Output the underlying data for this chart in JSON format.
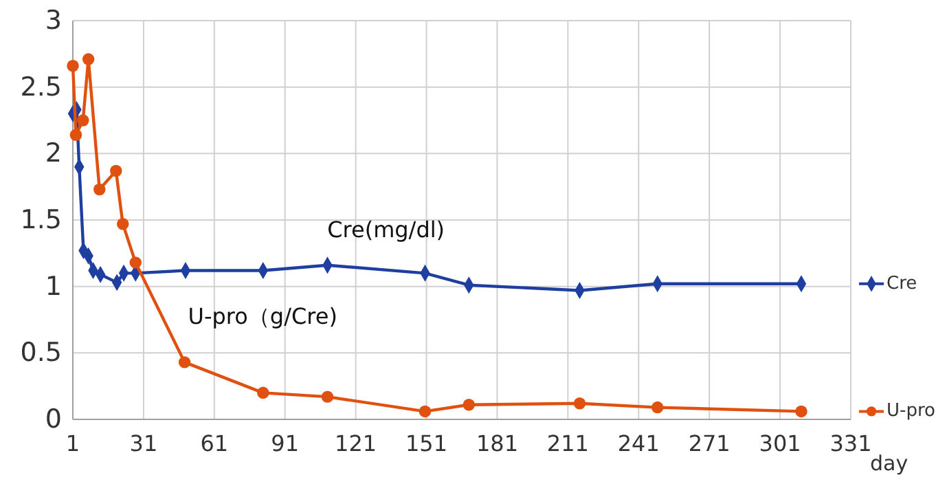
{
  "chart_data": {
    "type": "line",
    "xlabel": "day",
    "xlim": [
      1,
      331
    ],
    "xticks": [
      1,
      31,
      61,
      91,
      121,
      151,
      181,
      211,
      241,
      271,
      301,
      331
    ],
    "ylim": [
      0,
      3
    ],
    "yticks": [
      0,
      0.5,
      1,
      1.5,
      2,
      2.5,
      3
    ],
    "grid": true,
    "legend": "right",
    "line_style": "solid",
    "series": [
      {
        "name": "Cre",
        "color": "#1f3fa0",
        "marker": "diamond",
        "x": [
          1,
          2.6,
          3.7,
          5.5,
          7.6,
          9.6,
          12.7,
          19.7,
          22.6,
          27.6,
          48.8,
          81.7,
          109,
          150.4,
          169,
          216,
          249,
          310
        ],
        "values": [
          2.3,
          2.33,
          1.9,
          1.27,
          1.23,
          1.12,
          1.09,
          1.03,
          1.1,
          1.1,
          1.12,
          1.12,
          1.16,
          1.1,
          1.01,
          0.97,
          1.02,
          1.02
        ]
      },
      {
        "name": "U-pro",
        "color": "#e0500f",
        "marker": "circle",
        "x": [
          1,
          2.3,
          5.3,
          7.6,
          12.3,
          19.3,
          22.2,
          27.6,
          48.4,
          81.7,
          109,
          150.4,
          169,
          216,
          249,
          310
        ],
        "values": [
          2.66,
          2.14,
          2.25,
          2.71,
          1.73,
          1.87,
          1.47,
          1.18,
          0.43,
          0.2,
          0.17,
          0.06,
          0.11,
          0.12,
          0.09,
          0.06
        ]
      }
    ],
    "annotations": [
      "Cre(mg/dl)",
      "U-pro（g/Cre)"
    ]
  }
}
